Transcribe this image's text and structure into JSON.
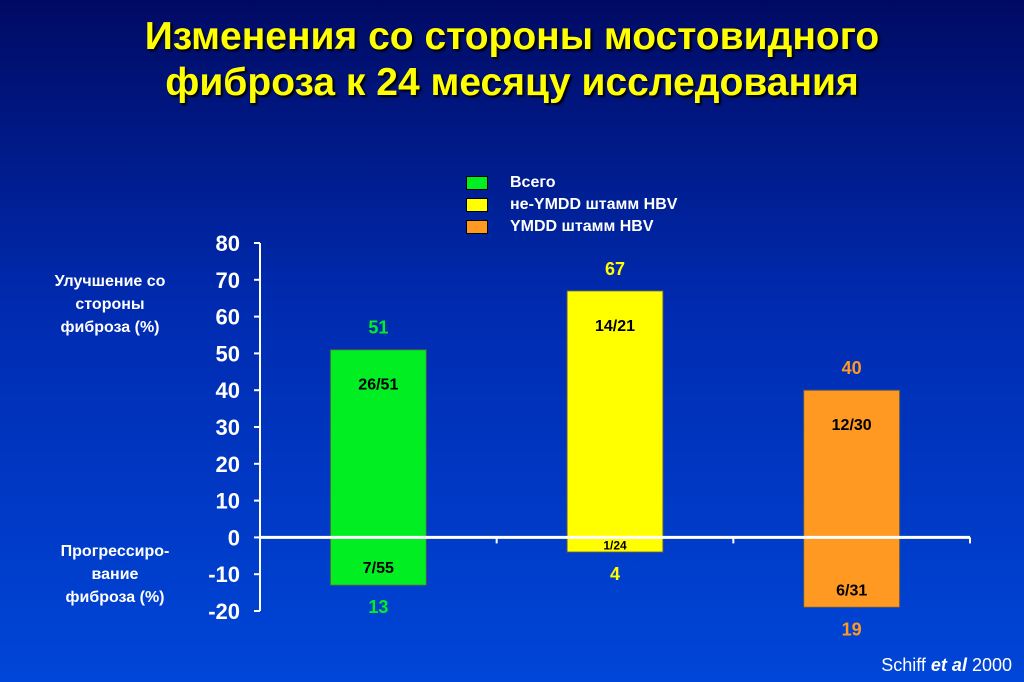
{
  "slide": {
    "title_line1": "Изменения со стороны мостовидного",
    "title_line2": "фиброза к 24 месяцу исследования",
    "improvement_label": [
      "Улучшение со",
      "стороны",
      "фиброза (%)"
    ],
    "progression_label": [
      "Прогрессиро-",
      "вание",
      "фиброза (%)"
    ],
    "citation_author": "Schiff ",
    "citation_etal": "et al",
    "citation_year": " 2000"
  },
  "colors": {
    "total": "#00ee22",
    "non_ymdd": "#ffff00",
    "ymdd": "#ff9922",
    "background": "#0030b8",
    "axis": "#ffffff"
  },
  "chart_data": {
    "type": "bar",
    "ylim": [
      -20,
      80
    ],
    "yticks": [
      80,
      70,
      60,
      50,
      40,
      30,
      20,
      10,
      0,
      -10,
      -20
    ],
    "grid": false,
    "legend_position": "top-center",
    "series": [
      {
        "name": "Всего",
        "color_key": "total",
        "improvement": 51,
        "improvement_fraction": "26/51",
        "progression": 13,
        "progression_fraction": "7/55"
      },
      {
        "name": "не-YMDD штамм HBV",
        "color_key": "non_ymdd",
        "improvement": 67,
        "improvement_fraction": "14/21",
        "progression": 4,
        "progression_fraction": "1/24"
      },
      {
        "name": "YMDD штамм HBV",
        "color_key": "ymdd",
        "improvement": 40,
        "improvement_fraction": "12/30",
        "progression": 19,
        "progression_fraction": "6/31"
      }
    ]
  }
}
